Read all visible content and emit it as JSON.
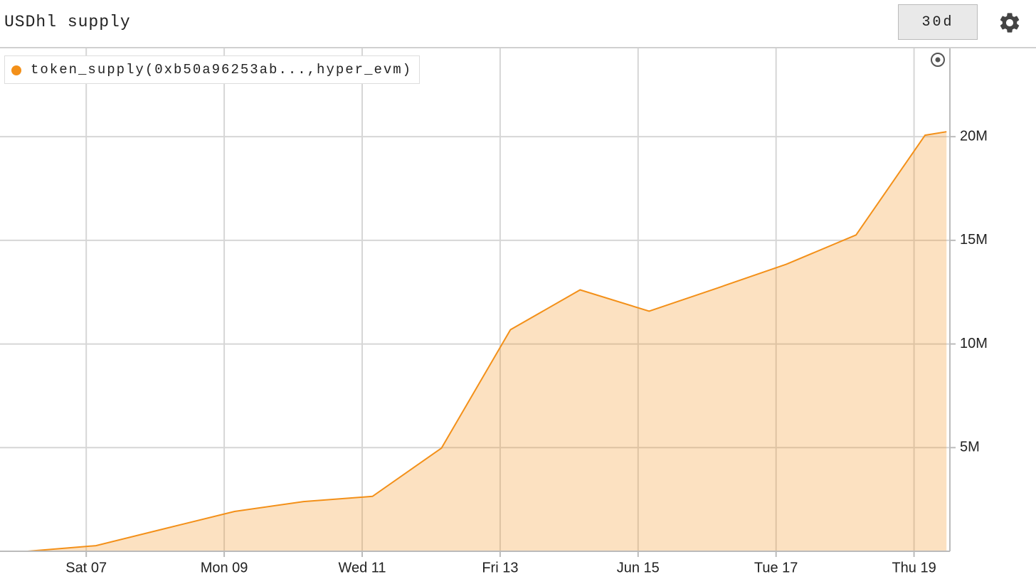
{
  "controls": {
    "range": "30d"
  },
  "chart_data": {
    "type": "area",
    "title": "USDhl supply",
    "x": [
      5.75,
      6.15,
      7.14,
      8.15,
      9.15,
      10.15,
      11.15,
      12.15,
      13.15,
      14.16,
      15.16,
      16.15,
      17.15,
      18.16,
      19.16,
      19.47
    ],
    "series": [
      {
        "name": "token_supply(0xb50a96253ab...,hyper_evm)",
        "color": "#f39019",
        "values": [
          0,
          0,
          270000,
          1100000,
          1920000,
          2400000,
          2650000,
          4980000,
          10690000,
          12610000,
          11580000,
          12700000,
          13850000,
          15260000,
          20070000,
          20240000
        ]
      }
    ],
    "xlim": [
      5.75,
      19.52
    ],
    "xticks": [
      {
        "value": 7,
        "label": "Sat 07"
      },
      {
        "value": 9,
        "label": "Mon 09"
      },
      {
        "value": 11,
        "label": "Wed 11"
      },
      {
        "value": 13,
        "label": "Fri 13"
      },
      {
        "value": 15,
        "label": "Jun 15"
      },
      {
        "value": 17,
        "label": "Tue 17"
      },
      {
        "value": 19,
        "label": "Thu 19"
      }
    ],
    "ylim": [
      0,
      24260000
    ],
    "yticks": [
      {
        "value": 5000000,
        "label": "5M"
      },
      {
        "value": 10000000,
        "label": "10M"
      },
      {
        "value": 15000000,
        "label": "15M"
      },
      {
        "value": 20000000,
        "label": "20M"
      }
    ],
    "grid": true,
    "legend": "top-left"
  }
}
